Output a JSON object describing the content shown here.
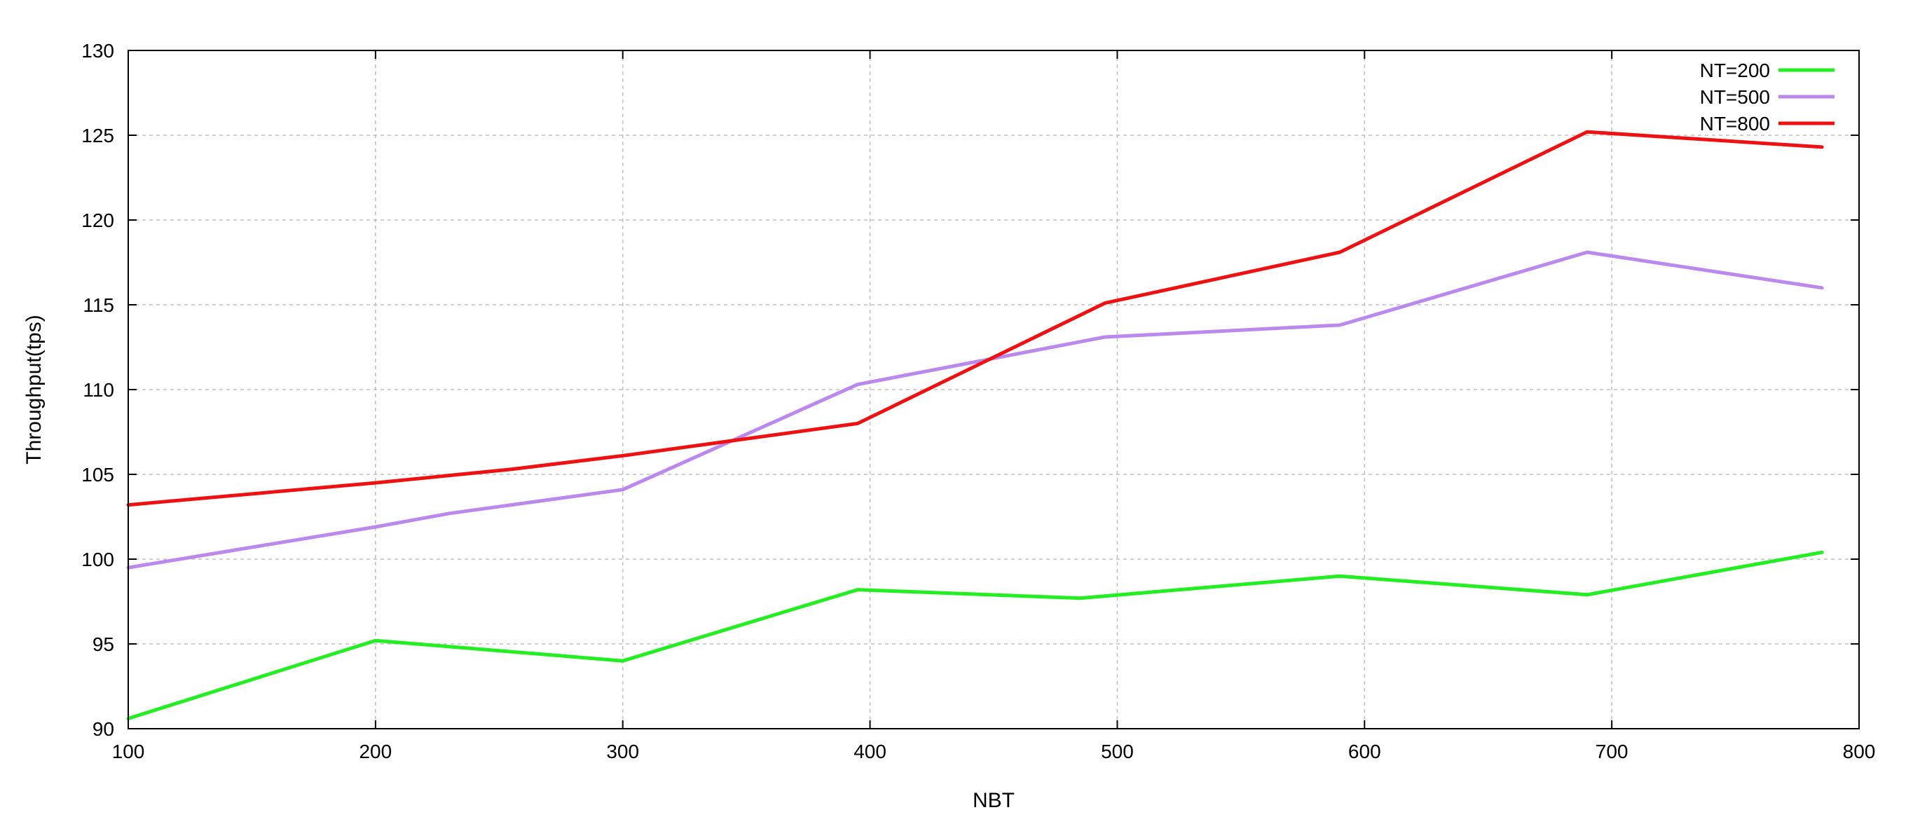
{
  "chart_data": {
    "type": "line",
    "title": "",
    "xlabel": "NBT",
    "ylabel": "Throughput(tps)",
    "xlim": [
      100,
      800
    ],
    "ylim": [
      90,
      130
    ],
    "x_ticks": [
      100,
      200,
      300,
      400,
      500,
      600,
      700,
      800
    ],
    "y_ticks": [
      90,
      95,
      100,
      105,
      110,
      115,
      120,
      125,
      130
    ],
    "grid": true,
    "legend_position": "top-right",
    "series": [
      {
        "name": "NT=200",
        "color": "#22ee22",
        "x": [
          100,
          200,
          300,
          395,
          485,
          590,
          690,
          785
        ],
        "values": [
          90.6,
          95.2,
          94.0,
          98.2,
          97.7,
          99.0,
          97.9,
          100.4
        ]
      },
      {
        "name": "NT=500",
        "color": "#bb88ee",
        "x": [
          100,
          200,
          230,
          300,
          395,
          495,
          590,
          690,
          785
        ],
        "values": [
          99.5,
          101.9,
          102.7,
          104.1,
          110.3,
          113.1,
          113.8,
          118.1,
          116.0
        ]
      },
      {
        "name": "NT=800",
        "color": "#ee1111",
        "x": [
          100,
          200,
          255,
          300,
          395,
          495,
          590,
          690,
          785
        ],
        "values": [
          103.2,
          104.5,
          105.3,
          106.1,
          108.0,
          115.1,
          118.1,
          125.2,
          124.3
        ]
      }
    ]
  }
}
